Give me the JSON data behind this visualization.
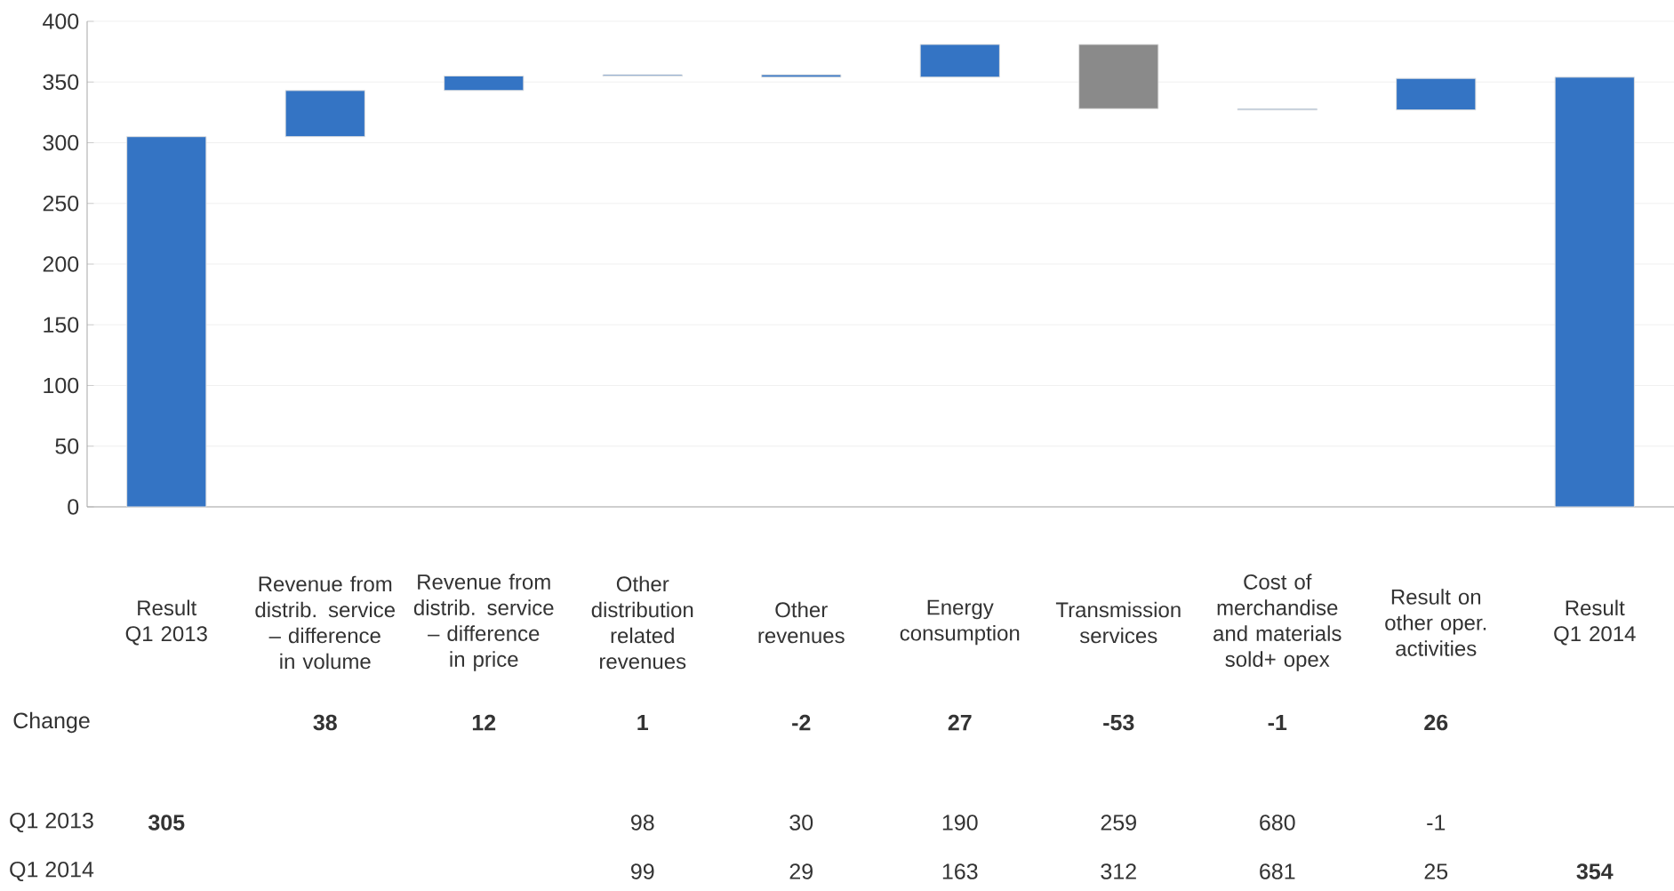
{
  "chart_data": {
    "type": "bar",
    "categories": [
      "Result Q1 2013",
      "Revenue from distrib. service – difference in volume",
      "Revenue from distrib. service – difference in price",
      "Other distribution related revenues",
      "Other revenues",
      "Energy consumption",
      "Transmission services",
      "Cost of merchandise and materials sold+ opex",
      "Result on other oper. activities",
      "Result Q1 2014"
    ],
    "series": [
      {
        "name": "Change",
        "values": [
          305,
          38,
          12,
          1,
          -2,
          27,
          -53,
          -1,
          26,
          354
        ],
        "base": [
          0,
          305,
          343,
          355,
          356,
          354,
          381,
          328,
          327,
          0
        ],
        "colors": [
          "#3474c4",
          "#3474c4",
          "#3474c4",
          "#3474c4",
          "#3474c4",
          "#3474c4",
          "#8a8a8a",
          "#3474c4",
          "#3474c4",
          "#3474c4"
        ],
        "value_labels": [
          null,
          "38",
          "12",
          "1",
          "-2",
          "27",
          "-53",
          "-1",
          "26",
          null
        ]
      },
      {
        "name": "Q1 2013",
        "type": "other",
        "values": [
          null,
          null,
          null,
          null,
          null,
          null,
          null,
          null,
          null,
          null
        ],
        "value_labels": [
          "305",
          null,
          null,
          "98",
          "30",
          "190",
          "259",
          "680",
          "-1",
          null
        ]
      },
      {
        "name": "Q1 2014",
        "type": "other",
        "values": [
          null,
          null,
          null,
          null,
          null,
          null,
          null,
          null,
          null,
          null
        ],
        "value_labels": [
          null,
          null,
          null,
          "99",
          "29",
          "163",
          "312",
          "681",
          "25",
          "354"
        ]
      }
    ],
    "ylim": [
      0,
      400
    ],
    "yticks": [
      0,
      50,
      100,
      150,
      200,
      250,
      300,
      350,
      400
    ],
    "grid": "y"
  }
}
